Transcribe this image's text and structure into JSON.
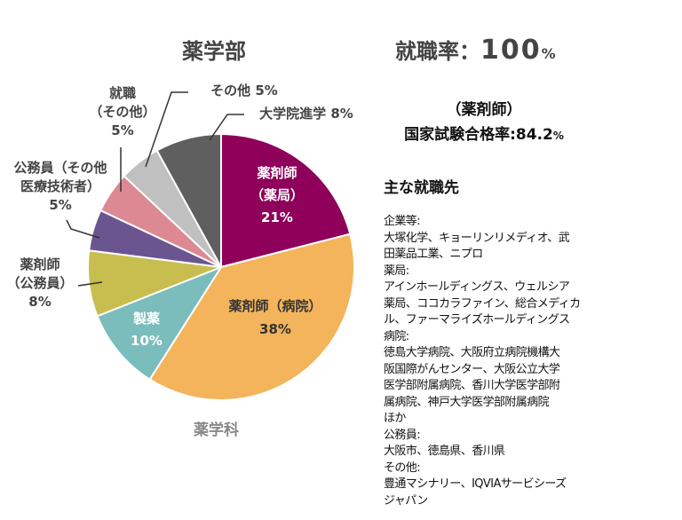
{
  "chart_data": {
    "type": "pie",
    "title": "薬学部",
    "xlabel": "薬学科",
    "start": "top-clockwise",
    "slices": [
      {
        "name": "薬剤師（薬局）",
        "lines": [
          "薬剤師",
          "（薬局）",
          "21%"
        ],
        "value": 21,
        "color": "#8E0059"
      },
      {
        "name": "薬剤師（病院）",
        "lines": [
          "薬剤師（病院）",
          "38%"
        ],
        "value": 38,
        "color": "#F3B45C"
      },
      {
        "name": "製薬",
        "lines": [
          "製薬",
          "10%"
        ],
        "value": 10,
        "color": "#7BBCBC"
      },
      {
        "name": "薬剤師（公務員）",
        "lines": [
          "薬剤師",
          "（公務員）",
          "8%"
        ],
        "value": 8,
        "color": "#C8BE50"
      },
      {
        "name": "公務員（その他医療技術者）",
        "lines": [
          "公務員（その他",
          "医療技術者）",
          "5%"
        ],
        "value": 5,
        "color": "#6B5590"
      },
      {
        "name": "就職（その他）",
        "lines": [
          "就職",
          "（その他）",
          "5%"
        ],
        "value": 5,
        "color": "#DC8993"
      },
      {
        "name": "その他",
        "lines": [
          "その他 5%"
        ],
        "value": 5,
        "color": "#C0C0C0"
      },
      {
        "name": "大学院進学",
        "lines": [
          "大学院進学 8%"
        ],
        "value": 8,
        "color": "#5F5F5F"
      }
    ]
  },
  "header": {
    "rate_label": "就職率：",
    "rate_value": "100",
    "rate_unit": "%"
  },
  "exam": {
    "line1": "（薬剤師）",
    "label": "国家試験合格率:",
    "value": "84.2",
    "unit": "%"
  },
  "employers": {
    "title": "主な就職先",
    "lines": [
      "企業等:",
      "大塚化学、キョーリンリメディオ、武",
      "田薬品工業、ニプロ",
      "薬局:",
      "アインホールディングス、ウェルシア",
      "薬局、ココカラファイン、総合メディカ",
      "ル、ファーマライズホールディングス",
      "病院:",
      "徳島大学病院、大阪府立病院機構大",
      "阪国際がんセンター、大阪公立大学",
      "医学部附属病院、香川大学医学部附",
      "属病院、神戸大学医学部附属病院",
      "ほか",
      "公務員:",
      "大阪市、徳島県、香川県",
      "その他:",
      "豊通マシナリー、IQVIAサービシーズ",
      "ジャパン"
    ]
  }
}
